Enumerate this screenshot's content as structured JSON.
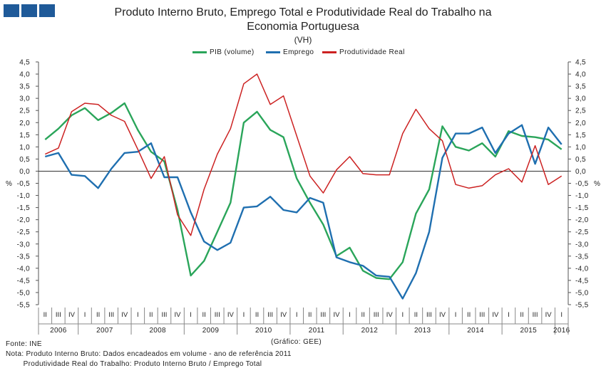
{
  "header": {
    "title_line1": "Produto Interno Bruto, Emprego Total e Produtividade Real do Trabalho na",
    "title_line2": "Economia Portuguesa",
    "subtitle": "(VH)"
  },
  "chart_data": {
    "type": "line",
    "title": "Produto Interno Bruto, Emprego Total e Produtividade Real do Trabalho na Economia Portuguesa",
    "subtitle": "(VH)",
    "ylabel_left": "%",
    "ylabel_right": "%",
    "ylim": [
      -5.5,
      4.5
    ],
    "ytick_step": 0.5,
    "yticks": [
      "4,5",
      "4,0",
      "3,5",
      "3,0",
      "2,5",
      "2,0",
      "1,5",
      "1,0",
      "0,5",
      "0,0",
      "-0,5",
      "-1,0",
      "-1,5",
      "-2,0",
      "-2,5",
      "-3,0",
      "-3,5",
      "-4,0",
      "-4,5",
      "-5,0",
      "-5,5"
    ],
    "years": [
      "2006",
      "2007",
      "2008",
      "2009",
      "2010",
      "2011",
      "2012",
      "2013",
      "2014",
      "2015",
      "2016"
    ],
    "quarter_labels": [
      "I",
      "II",
      "III",
      "IV"
    ],
    "first_quarter_label": "II",
    "legend_position": "top-center",
    "series": [
      {
        "name": "PIB (volume)",
        "color": "#2aa55a",
        "values": [
          1.3,
          1.75,
          2.3,
          2.6,
          2.1,
          2.4,
          2.8,
          1.7,
          0.8,
          0.4,
          -1.6,
          -4.3,
          -3.7,
          -2.5,
          -1.3,
          2.0,
          2.45,
          1.7,
          1.4,
          -0.3,
          -1.3,
          -2.2,
          -3.5,
          -3.15,
          -4.1,
          -4.4,
          -4.45,
          -3.75,
          -1.75,
          -0.75,
          1.85,
          1.0,
          0.85,
          1.15,
          0.6,
          1.65,
          1.45,
          1.4,
          1.3,
          0.9
        ]
      },
      {
        "name": "Emprego",
        "color": "#1f6fb0",
        "values": [
          0.6,
          0.75,
          -0.15,
          -0.2,
          -0.7,
          0.1,
          0.75,
          0.8,
          1.15,
          -0.25,
          -0.25,
          -1.7,
          -2.9,
          -3.25,
          -2.95,
          -1.5,
          -1.45,
          -1.05,
          -1.6,
          -1.7,
          -1.1,
          -1.3,
          -3.55,
          -3.75,
          -3.9,
          -4.3,
          -4.35,
          -5.25,
          -4.2,
          -2.5,
          0.55,
          1.55,
          1.55,
          1.8,
          0.75,
          1.55,
          1.9,
          0.3,
          1.8,
          1.1
        ]
      },
      {
        "name": "Produtividade Real",
        "color": "#cc2222",
        "values": [
          0.7,
          0.95,
          2.45,
          2.8,
          2.75,
          2.3,
          2.05,
          0.9,
          -0.3,
          0.6,
          -1.8,
          -2.65,
          -0.75,
          0.7,
          1.75,
          3.6,
          4.0,
          2.75,
          3.1,
          1.45,
          -0.2,
          -0.9,
          0.05,
          0.6,
          -0.1,
          -0.15,
          -0.15,
          1.55,
          2.55,
          1.75,
          1.25,
          -0.55,
          -0.7,
          -0.6,
          -0.15,
          0.1,
          -0.45,
          1.05,
          -0.55,
          -0.2
        ]
      }
    ]
  },
  "footer": {
    "credit": "(Gráfico: GEE)",
    "source": "Fonte: INE",
    "note1": "Nota: Produto Interno Bruto: Dados encadeados em volume - ano de referência 2011",
    "note2": "        Produtividade Real do Trabalho: Produto Interno Bruto / Emprego Total"
  }
}
